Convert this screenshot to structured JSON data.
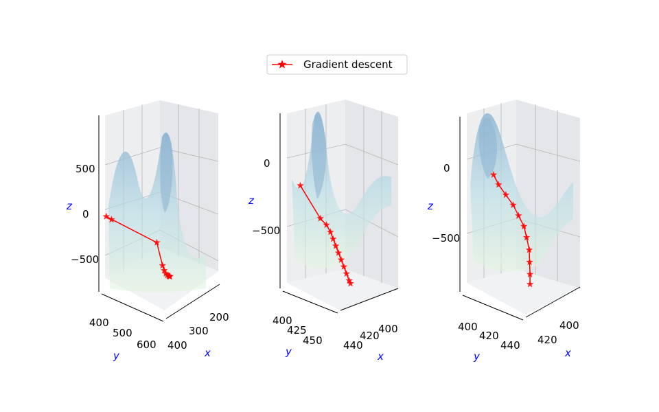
{
  "legend": {
    "label": "Gradient descent",
    "color": "#ff0000"
  },
  "colors": {
    "trajectory": "#ff0000",
    "surface_high": "#9ebfd8",
    "surface_low": "#dff3e2",
    "pane": "#eef0f2",
    "grid": "#b0b0b0",
    "axis_label": "#0000ff"
  },
  "chart_data": [
    {
      "type": "line",
      "marker": "star",
      "xlabel": "x",
      "ylabel": "y",
      "zlabel": "z",
      "x_ticks": [
        "200",
        "300",
        "400"
      ],
      "y_ticks": [
        "400",
        "500",
        "600"
      ],
      "z_ticks": [
        "500",
        "0",
        "−500"
      ],
      "series": [
        {
          "name": "Gradient descent",
          "x": [
            160,
            140,
            300,
            320,
            325,
            330,
            335,
            340,
            342,
            344,
            345
          ],
          "y": [
            360,
            350,
            620,
            640,
            650,
            660,
            665,
            668,
            670,
            672,
            673
          ],
          "z": [
            -300,
            -250,
            -500,
            -750,
            -800,
            -830,
            -850,
            -860,
            -865,
            -868,
            -870
          ]
        }
      ]
    },
    {
      "type": "line",
      "marker": "star",
      "xlabel": "x",
      "ylabel": "y",
      "zlabel": "z",
      "x_ticks": [
        "400",
        "420",
        "440"
      ],
      "y_ticks": [
        "400",
        "425",
        "450"
      ],
      "z_ticks": [
        "0",
        "−500"
      ],
      "series": [
        {
          "name": "Gradient descent",
          "x": [
            405,
            420,
            425,
            428,
            430,
            432,
            434,
            436,
            438,
            440,
            442,
            443
          ],
          "y": [
            415,
            430,
            433,
            436,
            438,
            440,
            442,
            444,
            446,
            448,
            450,
            451
          ],
          "z": [
            -250,
            -480,
            -530,
            -580,
            -630,
            -680,
            -730,
            -780,
            -830,
            -880,
            -930,
            -950
          ]
        }
      ]
    },
    {
      "type": "line",
      "marker": "star",
      "xlabel": "x",
      "ylabel": "y",
      "zlabel": "z",
      "x_ticks": [
        "400",
        "420"
      ],
      "y_ticks": [
        "400",
        "420",
        "440"
      ],
      "z_ticks": [
        "0",
        "−500"
      ],
      "series": [
        {
          "name": "Gradient descent",
          "x": [
            410,
            412,
            415,
            418,
            420,
            422,
            423,
            424,
            424,
            424,
            424
          ],
          "y": [
            405,
            408,
            412,
            416,
            420,
            424,
            426,
            428,
            429,
            430,
            430
          ],
          "z": [
            -250,
            -310,
            -370,
            -430,
            -490,
            -550,
            -620,
            -700,
            -780,
            -860,
            -930
          ]
        }
      ]
    }
  ]
}
